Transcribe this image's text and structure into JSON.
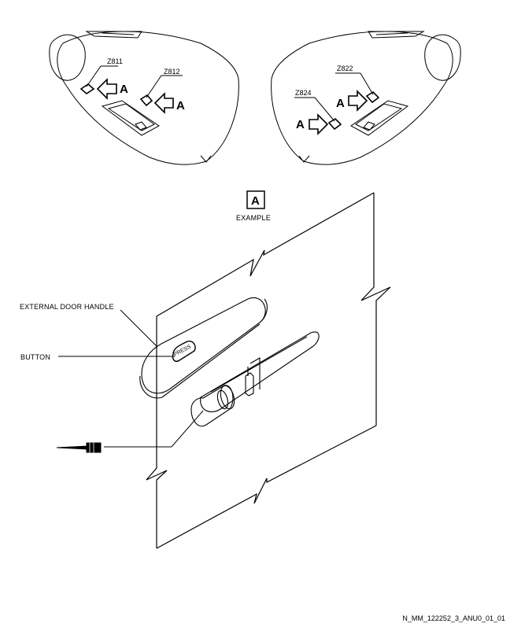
{
  "figure": {
    "zones_left": [
      "Z811",
      "Z812"
    ],
    "zones_right": [
      "Z822",
      "Z824"
    ],
    "view_letter": "A",
    "view_caption": "EXAMPLE",
    "callouts": {
      "external_door_handle": "EXTERNAL DOOR HANDLE",
      "button": "BUTTON",
      "press": "PRESS"
    },
    "reference_code": "N_MM_122252_3_ANU0_01_01"
  }
}
